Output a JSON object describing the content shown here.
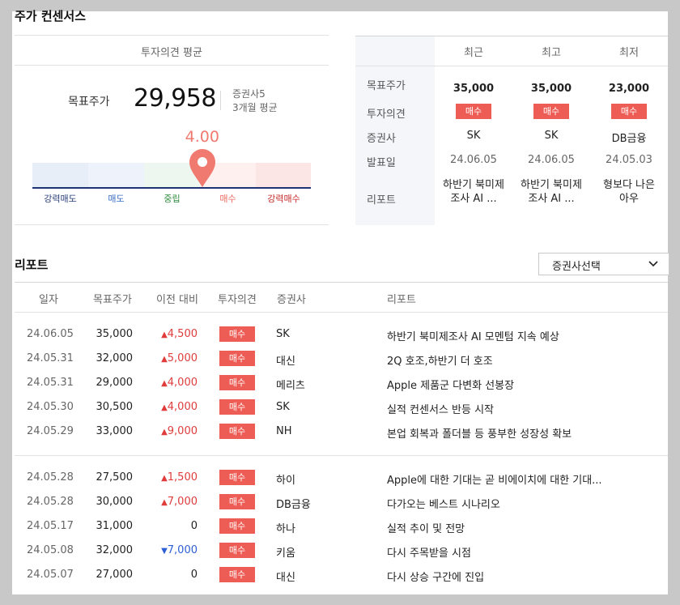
{
  "section": {
    "title": "주가 컨센서스"
  },
  "summary": {
    "header": "투자의견 평균",
    "target_label": "목표주가",
    "target_value": "29,958",
    "broker_count": "증권사5",
    "period": "3개월 평균",
    "opinion_score": "4.00",
    "opinion_level_fraction": 0.61,
    "gauge_labels": [
      "강력매도",
      "매도",
      "중립",
      "매수",
      "강력매수"
    ],
    "gauge_colors": [
      "#e8eef8",
      "#eef3fb",
      "#edf6ef",
      "#fdf0ef",
      "#fbe5e5"
    ],
    "gauge_text_colors": [
      "#2a3f7a",
      "#3b6cc7",
      "#2e8b3c",
      "#ee6a5f",
      "#c62828"
    ],
    "pin_color": "#f07a70"
  },
  "compare": {
    "headers": [
      "최근",
      "최고",
      "최저"
    ],
    "row_labels": [
      "목표주가",
      "투자의견",
      "증권사",
      "발표일",
      "리포트"
    ],
    "columns": [
      {
        "price": "35,000",
        "opinion": "매수",
        "broker": "SK",
        "date": "24.06.05",
        "report": "하반기 북미제조사 AI ..."
      },
      {
        "price": "35,000",
        "opinion": "매수",
        "broker": "SK",
        "date": "24.06.05",
        "report": "하반기 북미제조사 AI ..."
      },
      {
        "price": "23,000",
        "opinion": "매수",
        "broker": "DB금융",
        "date": "24.05.03",
        "report": "형보다 나은 아우"
      }
    ]
  },
  "reports": {
    "title": "리포트",
    "select_label": "증권사선택",
    "headers": [
      "일자",
      "목표주가",
      "이전 대비",
      "투자의견",
      "증권사",
      "리포트"
    ],
    "rows": [
      {
        "date": "24.06.05",
        "price": "35,000",
        "dir": "up",
        "diff": "4,500",
        "opinion": "매수",
        "broker": "SK",
        "title": "하반기 북미제조사 AI 모멘텀 지속 예상"
      },
      {
        "date": "24.05.31",
        "price": "32,000",
        "dir": "up",
        "diff": "5,000",
        "opinion": "매수",
        "broker": "대신",
        "title": "2Q 호조,하반기 더 호조"
      },
      {
        "date": "24.05.31",
        "price": "29,000",
        "dir": "up",
        "diff": "4,000",
        "opinion": "매수",
        "broker": "메리츠",
        "title": "Apple 제품군 다변화 선봉장"
      },
      {
        "date": "24.05.30",
        "price": "30,500",
        "dir": "up",
        "diff": "4,000",
        "opinion": "매수",
        "broker": "SK",
        "title": "실적 컨센서스 반등 시작"
      },
      {
        "date": "24.05.29",
        "price": "33,000",
        "dir": "up",
        "diff": "9,000",
        "opinion": "매수",
        "broker": "NH",
        "title": "본업 회복과 폴더블 등 풍부한 성장성 확보"
      },
      {
        "date": "24.05.28",
        "price": "27,500",
        "dir": "up",
        "diff": "1,500",
        "opinion": "매수",
        "broker": "하이",
        "title": "Apple에 대한 기대는 곧 비에이치에 대한 기대..."
      },
      {
        "date": "24.05.28",
        "price": "30,000",
        "dir": "up",
        "diff": "7,000",
        "opinion": "매수",
        "broker": "DB금융",
        "title": "다가오는 베스트 시나리오"
      },
      {
        "date": "24.05.17",
        "price": "31,000",
        "dir": "zero",
        "diff": "0",
        "opinion": "매수",
        "broker": "하나",
        "title": "실적 추이 및 전망"
      },
      {
        "date": "24.05.08",
        "price": "32,000",
        "dir": "down",
        "diff": "7,000",
        "opinion": "매수",
        "broker": "키움",
        "title": "다시 주목받을 시점"
      },
      {
        "date": "24.05.07",
        "price": "27,000",
        "dir": "zero",
        "diff": "0",
        "opinion": "매수",
        "broker": "대신",
        "title": "다시 상승 구간에 진입"
      }
    ]
  }
}
